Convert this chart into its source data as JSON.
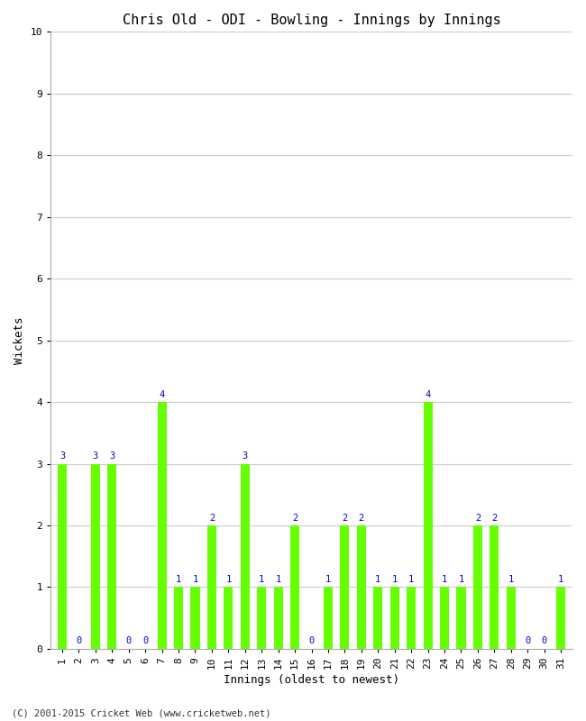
{
  "title": "Chris Old - ODI - Bowling - Innings by Innings",
  "xlabel": "Innings (oldest to newest)",
  "ylabel": "Wickets",
  "footnote": "(C) 2001-2015 Cricket Web (www.cricketweb.net)",
  "bar_color": "#66FF00",
  "label_color": "#0000CC",
  "ylim": [
    0,
    10
  ],
  "yticks": [
    0,
    1,
    2,
    3,
    4,
    5,
    6,
    7,
    8,
    9,
    10
  ],
  "innings": [
    1,
    2,
    3,
    4,
    5,
    6,
    7,
    8,
    9,
    10,
    11,
    12,
    13,
    14,
    15,
    16,
    17,
    18,
    19,
    20,
    21,
    22,
    23,
    24,
    25,
    26,
    27,
    28,
    29,
    30,
    31
  ],
  "wickets": [
    3,
    0,
    3,
    3,
    0,
    0,
    4,
    1,
    1,
    2,
    1,
    3,
    1,
    1,
    2,
    0,
    1,
    2,
    2,
    1,
    1,
    1,
    4,
    1,
    1,
    2,
    2,
    1,
    0,
    0,
    1
  ],
  "background_color": "#ffffff",
  "grid_color": "#cccccc",
  "title_fontsize": 11,
  "axis_label_fontsize": 9,
  "tick_label_fontsize": 8,
  "annotation_fontsize": 7.5,
  "footnote_fontsize": 7.5
}
